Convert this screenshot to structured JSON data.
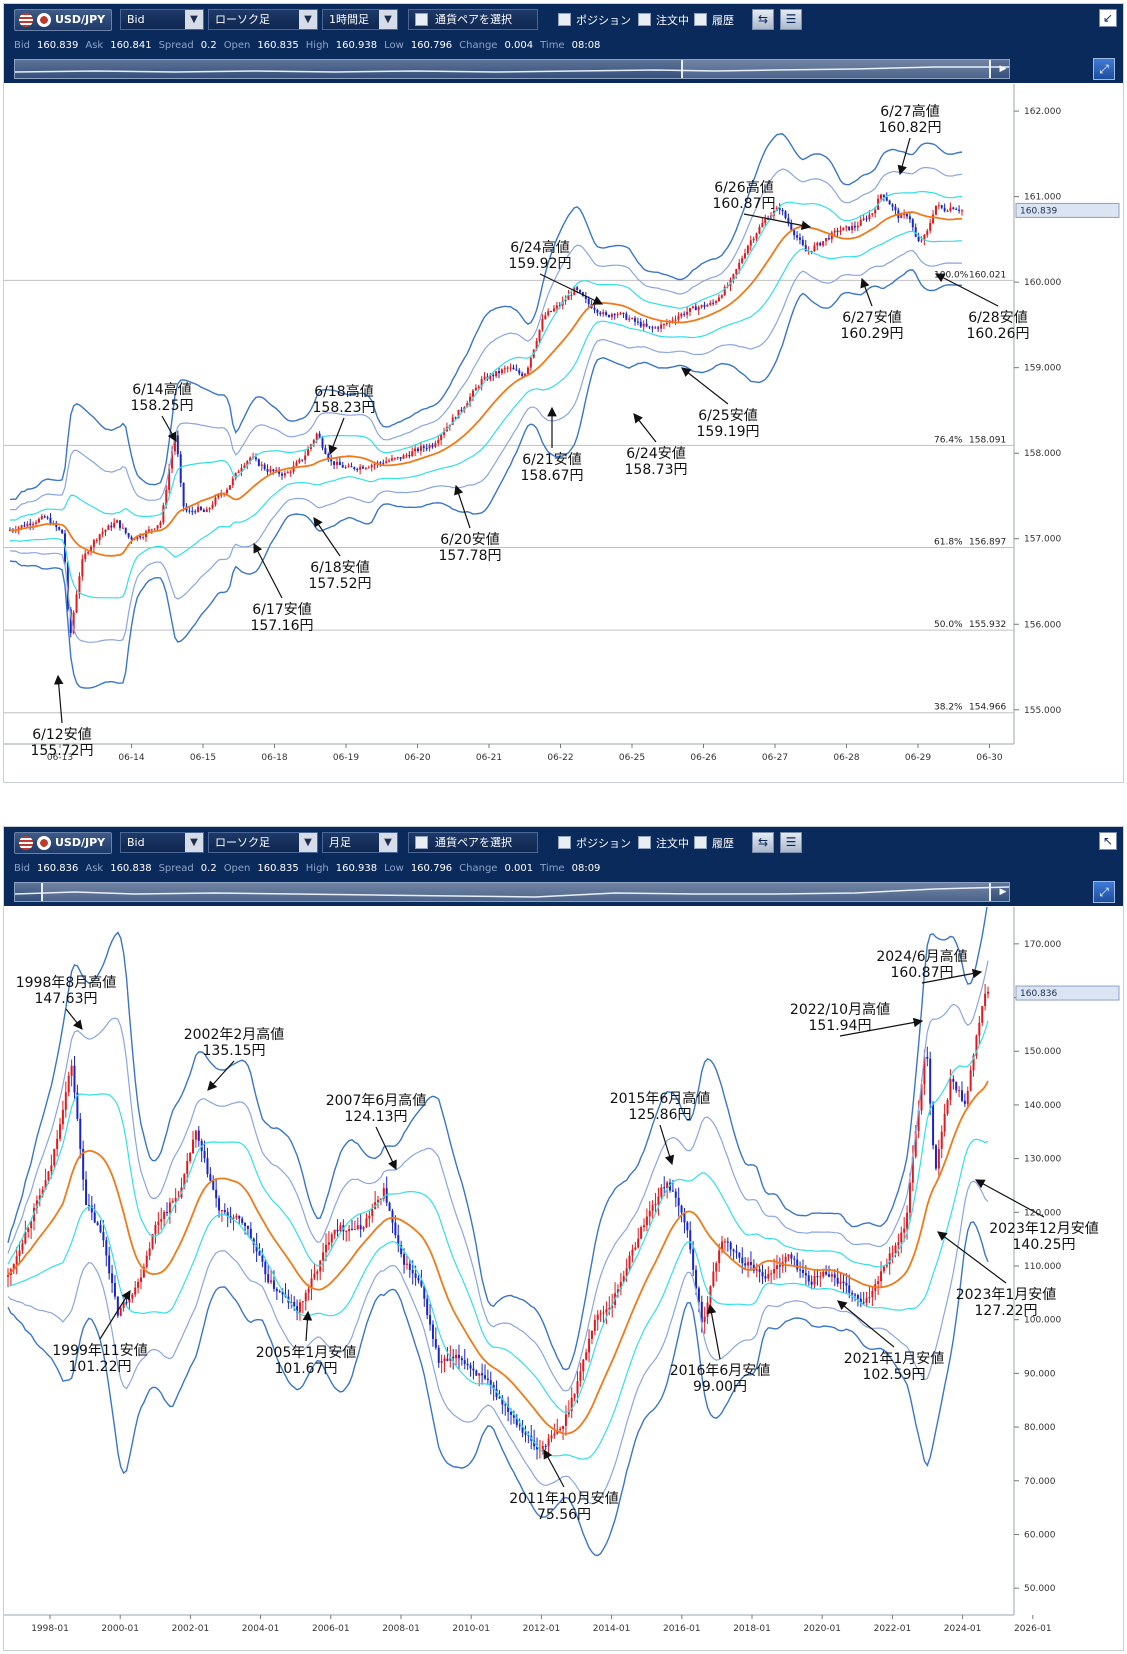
{
  "panels": [
    {
      "toolbar": {
        "pair": "USD/JPY",
        "price_type": "Bid",
        "chart_type": "ローソク足",
        "timeframe": "1時間足",
        "pair_picker": "通貨ペアを選択",
        "checks": [
          "ポジション",
          "注文中",
          "履歴"
        ]
      },
      "quote": {
        "bid_label": "Bid",
        "bid": "160.839",
        "ask_label": "Ask",
        "ask": "160.841",
        "spread_label": "Spread",
        "spread": "0.2",
        "open_label": "Open",
        "open": "160.835",
        "high_label": "High",
        "high": "160.938",
        "low_label": "Low",
        "low": "160.796",
        "change_label": "Change",
        "change": "0.004",
        "time_label": "Time",
        "time": "08:08"
      }
    },
    {
      "toolbar": {
        "pair": "USD/JPY",
        "price_type": "Bid",
        "chart_type": "ローソク足",
        "timeframe": "月足",
        "pair_picker": "通貨ペアを選択",
        "checks": [
          "ポジション",
          "注文中",
          "履歴"
        ]
      },
      "quote": {
        "bid_label": "Bid",
        "bid": "160.836",
        "ask_label": "Ask",
        "ask": "160.838",
        "spread_label": "Spread",
        "spread": "0.2",
        "open_label": "Open",
        "open": "160.835",
        "high_label": "High",
        "high": "160.938",
        "low_label": "Low",
        "low": "160.796",
        "change_label": "Change",
        "change": "0.001",
        "time_label": "Time",
        "time": "08:09"
      }
    }
  ],
  "colors": {
    "up": "#e0191f",
    "down": "#1a25c8",
    "ma": "#f07a1a",
    "band1": "#33dfe6",
    "band2": "#8aa6e0",
    "band3": "#3a75cc",
    "fib": "#c0c0c0"
  },
  "chart_data": [
    {
      "type": "candlestick",
      "timeframe": "1時間足",
      "y_ticks": [
        "162.000",
        "161.000",
        "160.000",
        "159.000",
        "158.000",
        "157.000",
        "156.000",
        "155.000"
      ],
      "ylim": [
        154.6,
        162.2
      ],
      "x_labels": [
        "06-13",
        "06-14",
        "06-15",
        "06-18",
        "06-19",
        "06-20",
        "06-21",
        "06-22",
        "06-25",
        "06-26",
        "06-27",
        "06-28",
        "06-29",
        "06-30"
      ],
      "current_price": "160.839",
      "fib_levels": [
        {
          "label": "100.0%",
          "value": "160.021"
        },
        {
          "label": "76.4%",
          "value": "158.091"
        },
        {
          "label": "61.8%",
          "value": "156.897"
        },
        {
          "label": "50.0%",
          "value": "155.932"
        },
        {
          "label": "38.2%",
          "value": "154.966"
        }
      ],
      "price_path": [
        [
          0,
          157.1
        ],
        [
          4,
          157.25
        ],
        [
          6,
          157.05
        ],
        [
          6.7,
          155.8
        ],
        [
          7.3,
          156.25
        ],
        [
          8,
          156.7
        ],
        [
          8.6,
          156.85
        ],
        [
          10,
          157.05
        ],
        [
          12,
          157.2
        ],
        [
          13.5,
          157.0
        ],
        [
          15,
          157.05
        ],
        [
          17,
          157.2
        ],
        [
          18,
          157.9
        ],
        [
          18.6,
          158.25
        ],
        [
          19.4,
          157.4
        ],
        [
          20,
          157.3
        ],
        [
          21,
          157.35
        ],
        [
          22,
          157.3
        ],
        [
          23,
          157.45
        ],
        [
          24.5,
          157.6
        ],
        [
          26,
          157.85
        ],
        [
          27,
          157.95
        ],
        [
          29,
          157.8
        ],
        [
          31,
          157.75
        ],
        [
          33,
          157.95
        ],
        [
          34.5,
          158.23
        ],
        [
          36,
          157.9
        ],
        [
          38,
          157.82
        ],
        [
          40,
          157.85
        ],
        [
          42,
          157.9
        ],
        [
          44,
          157.95
        ],
        [
          46,
          158.05
        ],
        [
          47.5,
          158.1
        ],
        [
          49,
          158.3
        ],
        [
          51,
          158.55
        ],
        [
          53,
          158.85
        ],
        [
          56,
          159.0
        ],
        [
          57.5,
          158.92
        ],
        [
          58,
          158.95
        ],
        [
          60,
          159.6
        ],
        [
          62,
          159.75
        ],
        [
          63.5,
          159.92
        ],
        [
          65,
          159.75
        ],
        [
          67,
          159.6
        ],
        [
          68,
          159.65
        ],
        [
          70,
          159.55
        ],
        [
          72,
          159.45
        ],
        [
          73.5,
          159.5
        ],
        [
          75,
          159.6
        ],
        [
          77,
          159.7
        ],
        [
          79,
          159.75
        ],
        [
          81,
          160.0
        ],
        [
          83,
          160.45
        ],
        [
          85,
          160.75
        ],
        [
          86.5,
          160.87
        ],
        [
          88,
          160.6
        ],
        [
          89.5,
          160.35
        ],
        [
          91,
          160.45
        ],
        [
          93,
          160.6
        ],
        [
          95,
          160.65
        ],
        [
          97,
          160.82
        ],
        [
          98,
          161.05
        ],
        [
          99,
          160.9
        ],
        [
          100,
          160.75
        ],
        [
          101,
          160.8
        ],
        [
          102,
          160.45
        ],
        [
          103,
          160.55
        ],
        [
          104,
          160.9
        ],
        [
          105,
          160.85
        ],
        [
          106,
          160.88
        ],
        [
          107,
          160.84
        ]
      ],
      "annotations": [
        {
          "label": "6/12安値",
          "value": "155.72円"
        },
        {
          "label": "6/14高値",
          "value": "158.25円"
        },
        {
          "label": "6/17安値",
          "value": "157.16円"
        },
        {
          "label": "6/18高値",
          "value": "158.23円"
        },
        {
          "label": "6/18安値",
          "value": "157.52円"
        },
        {
          "label": "6/20安値",
          "value": "157.78円"
        },
        {
          "label": "6/21安値",
          "value": "158.67円"
        },
        {
          "label": "6/24高値",
          "value": "159.92円"
        },
        {
          "label": "6/24安値",
          "value": "158.73円"
        },
        {
          "label": "6/25安値",
          "value": "159.19円"
        },
        {
          "label": "6/26高値",
          "value": "160.87円"
        },
        {
          "label": "6/27高値",
          "value": "160.82円"
        },
        {
          "label": "6/27安値",
          "value": "160.29円"
        },
        {
          "label": "6/28安値",
          "value": "160.26円"
        }
      ]
    },
    {
      "type": "candlestick",
      "timeframe": "月足",
      "y_ticks": [
        "170.000",
        "160.000",
        "150.000",
        "140.000",
        "130.000",
        "120.000",
        "110.000",
        "100.000",
        "90.000",
        "80.000",
        "70.000",
        "60.000",
        "50.000"
      ],
      "ylim": [
        45,
        175
      ],
      "x_labels": [
        "1998-01",
        "2000-01",
        "2002-01",
        "2004-01",
        "2006-01",
        "2008-01",
        "2010-01",
        "2012-01",
        "2014-01",
        "2016-01",
        "2018-01",
        "2020-01",
        "2022-01",
        "2024-01",
        "2026-01"
      ],
      "current_price": "160.836",
      "price_path": [
        [
          1996.8,
          108
        ],
        [
          1997.4,
          118
        ],
        [
          1998.0,
          128
        ],
        [
          1998.6,
          147.63
        ],
        [
          1999.0,
          122
        ],
        [
          1999.5,
          115
        ],
        [
          1999.9,
          101.22
        ],
        [
          2000.5,
          107
        ],
        [
          2001.0,
          118
        ],
        [
          2001.7,
          124
        ],
        [
          2002.1,
          135.15
        ],
        [
          2002.8,
          120
        ],
        [
          2003.5,
          118
        ],
        [
          2004.2,
          107
        ],
        [
          2005.0,
          101.67
        ],
        [
          2005.6,
          110
        ],
        [
          2006.0,
          117
        ],
        [
          2006.8,
          117
        ],
        [
          2007.45,
          124.13
        ],
        [
          2007.9,
          112
        ],
        [
          2008.5,
          106
        ],
        [
          2009.0,
          92
        ],
        [
          2009.6,
          93
        ],
        [
          2010.4,
          88
        ],
        [
          2011.0,
          83
        ],
        [
          2011.8,
          75.56
        ],
        [
          2012.5,
          80
        ],
        [
          2013.0,
          90
        ],
        [
          2013.4,
          100
        ],
        [
          2013.9,
          103
        ],
        [
          2014.8,
          118
        ],
        [
          2015.45,
          125.86
        ],
        [
          2016.0,
          118
        ],
        [
          2016.45,
          99.0
        ],
        [
          2017.0,
          115
        ],
        [
          2017.6,
          111
        ],
        [
          2018.3,
          108
        ],
        [
          2018.9,
          112
        ],
        [
          2019.5,
          107
        ],
        [
          2020.0,
          109
        ],
        [
          2020.5,
          106
        ],
        [
          2021.05,
          102.59
        ],
        [
          2021.6,
          110
        ],
        [
          2022.2,
          117
        ],
        [
          2022.8,
          151.94
        ],
        [
          2023.05,
          127.22
        ],
        [
          2023.5,
          145
        ],
        [
          2023.9,
          140.25
        ],
        [
          2024.45,
          160.87
        ],
        [
          2024.55,
          160.84
        ]
      ],
      "annotations": [
        {
          "label": "1998年8月高値",
          "value": "147.63円"
        },
        {
          "label": "1999年11安値",
          "value": "101.22円"
        },
        {
          "label": "2002年2月高値",
          "value": "135.15円"
        },
        {
          "label": "2005年1月安値",
          "value": "101.67円"
        },
        {
          "label": "2007年6月高値",
          "value": "124.13円"
        },
        {
          "label": "2011年10月安値",
          "value": "75.56円"
        },
        {
          "label": "2015年6月高値",
          "value": "125.86円"
        },
        {
          "label": "2016年6月安値",
          "value": "99.00円"
        },
        {
          "label": "2021年1月安値",
          "value": "102.59円"
        },
        {
          "label": "2022/10月高値",
          "value": "151.94円"
        },
        {
          "label": "2023年1月安値",
          "value": "127.22円"
        },
        {
          "label": "2023年12月安値",
          "value": "140.25円"
        },
        {
          "label": "2024/6月高値",
          "value": "160.87円"
        }
      ]
    }
  ]
}
